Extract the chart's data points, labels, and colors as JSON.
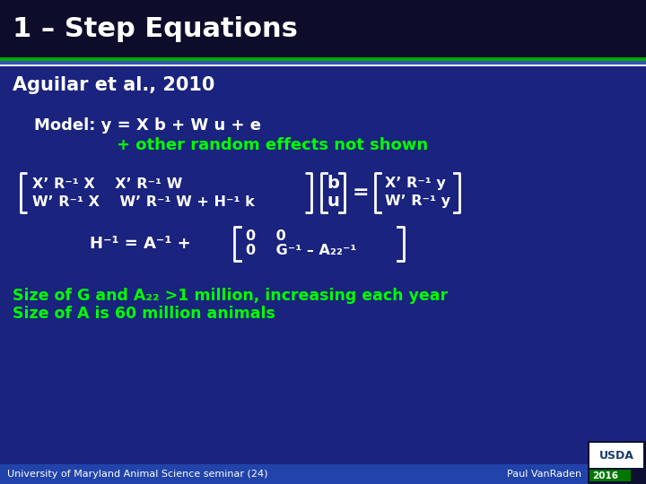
{
  "title": "1 – Step Equations",
  "title_bg": "#0d0d2b",
  "title_color": "#ffffff",
  "title_fontsize": 22,
  "subtitle": "Aguilar et al., 2010",
  "subtitle_color": "#ffffff",
  "subtitle_fontsize": 15,
  "bg_color": "#1a237e",
  "model_line1": "Model: y = X b + W u + e",
  "model_line2": "+ other random effects not shown",
  "model_color": "#ffffff",
  "green_color": "#00ff00",
  "bottom_line1": "Size of G and A₂₂ >1 million, increasing each year",
  "bottom_line2": "Size of A is 60 million animals",
  "footer_left": "University of Maryland Animal Science seminar (24)",
  "footer_right": "Paul VanRaden",
  "stripe1_color": "#3355bb",
  "stripe2_color": "#00aa00",
  "stripe3_color": "#ffffff"
}
